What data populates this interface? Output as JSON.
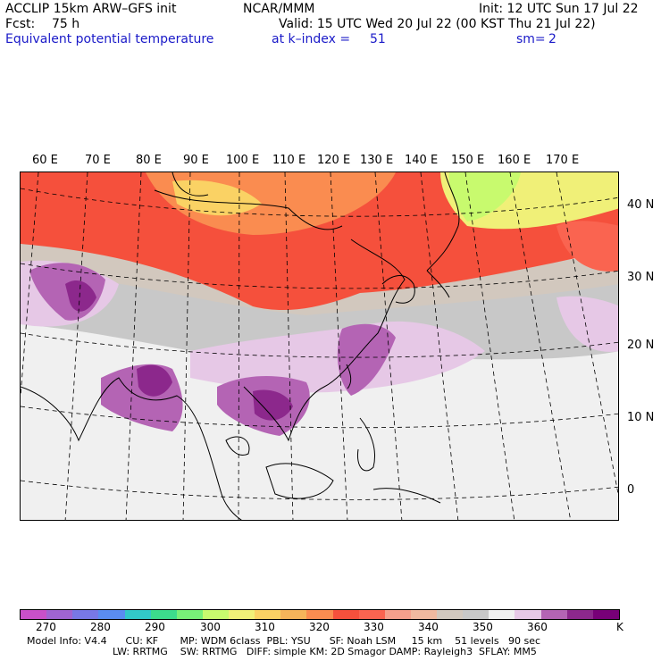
{
  "header": {
    "model": "ACCLIP 15km ARW–GFS init",
    "center": "NCAR/MMM",
    "init": "Init: 12 UTC Sun 17 Jul 22",
    "fcst_label": "Fcst:",
    "fcst_value": "75 h",
    "valid": "Valid: 15 UTC Wed 20 Jul 22 (00 KST Thu 21 Jul 22)",
    "field": "Equivalent potential temperature",
    "level": "at k–index =",
    "level_value": "51",
    "smoothing": "sm=",
    "smoothing_value": "2"
  },
  "map": {
    "lon_labels": [
      "60 E",
      "70 E",
      "80 E",
      "90 E",
      "100 E",
      "110 E",
      "120 E",
      "130 E",
      "140 E",
      "150 E",
      "160 E",
      "170 E"
    ],
    "lat_labels": [
      "40 N",
      "30 N",
      "20 N",
      "10 N",
      "0"
    ]
  },
  "colorbar": {
    "colors": [
      "#c850c8",
      "#a064d2",
      "#7878e6",
      "#5a8cf0",
      "#32c8c8",
      "#3cdc8c",
      "#78f078",
      "#c8fa6e",
      "#f0f078",
      "#fad264",
      "#f5b45a",
      "#fa8c50",
      "#f5503c",
      "#fa6450",
      "#f5a08c",
      "#f0b9a0",
      "#d2c8be",
      "#c8c8c8",
      "#f0f0f0",
      "#e6c8e6",
      "#b464b4",
      "#8c288c",
      "#780078"
    ],
    "tick_labels": [
      "270",
      "280",
      "290",
      "300",
      "310",
      "320",
      "330",
      "340",
      "350",
      "360",
      "K"
    ]
  },
  "footer": {
    "line1": "Model Info: V4.4      CU: KF       MP: WDM 6class  PBL: YSU      SF: Noah LSM     15 km    51 levels   90 sec",
    "line2": "LW: RRTMG    SW: RRTMG   DIFF: simple KM: 2D Smagor DAMP: Rayleigh3  SFLAY: MM5"
  }
}
